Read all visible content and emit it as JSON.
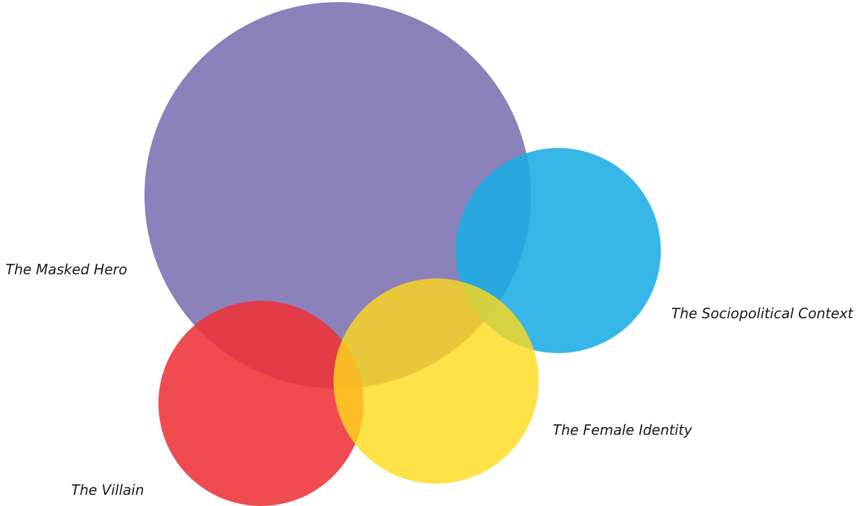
{
  "diagram": {
    "type": "overlapping-circles",
    "circles": [
      {
        "id": "masked-hero",
        "label": "The Masked Hero",
        "color": "#7E73B4",
        "opacity": 0.9
      },
      {
        "id": "sociopolitical",
        "label": "The Sociopolitical Context",
        "color": "#1AADE4",
        "opacity": 0.88
      },
      {
        "id": "villain",
        "label": "The Villain",
        "color": "#EE3239",
        "opacity": 0.88
      },
      {
        "id": "female-identity",
        "label": "The Female Identity",
        "color": "#FFD91A",
        "opacity": 0.8
      }
    ]
  }
}
